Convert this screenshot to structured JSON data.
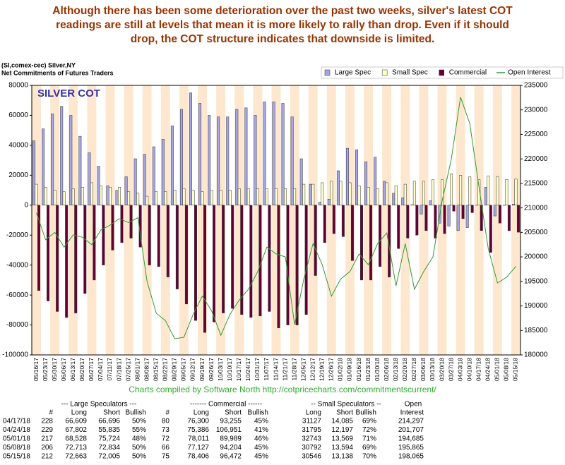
{
  "header": {
    "lines": [
      "Although there has been some deterioration over the past two weeks, silver's latest COT",
      "readings are still at levels that mean it is more likely to rally than drop. Even if it should",
      "drop, the COT structure indicates that downside is limited."
    ]
  },
  "chart_data": {
    "type": "bar",
    "title": "SILVER COT",
    "subtitle": [
      "(SI,comex-cec) Silver,NY",
      "Net Commitments of Futures Traders"
    ],
    "categories": [
      "05/16/17",
      "05/23/17",
      "05/30/17",
      "06/06/17",
      "06/13/17",
      "06/20/17",
      "06/27/17",
      "07/04/17",
      "07/11/17",
      "07/18/17",
      "07/25/17",
      "08/01/17",
      "08/08/17",
      "08/15/17",
      "08/22/17",
      "08/29/17",
      "09/05/17",
      "09/12/17",
      "09/19/17",
      "09/26/17",
      "10/03/17",
      "10/10/17",
      "10/17/17",
      "10/24/17",
      "10/31/17",
      "11/07/17",
      "11/14/17",
      "11/21/17",
      "11/28/17",
      "12/05/17",
      "12/12/17",
      "12/19/17",
      "12/26/17",
      "01/02/18",
      "01/09/18",
      "01/16/18",
      "01/23/18",
      "01/30/18",
      "02/06/18",
      "02/13/18",
      "02/20/18",
      "02/27/18",
      "03/06/18",
      "03/13/18",
      "03/20/18",
      "03/27/18",
      "04/03/18",
      "04/10/18",
      "04/17/18",
      "04/24/18",
      "05/01/18",
      "05/08/18",
      "05/15/18"
    ],
    "series": [
      {
        "name": "Large Spec",
        "type": "bar",
        "color": "#a6a6e6",
        "values": [
          43000,
          51000,
          61000,
          66000,
          60000,
          46000,
          35000,
          26000,
          13000,
          10000,
          19000,
          31000,
          34000,
          39000,
          44000,
          53000,
          64000,
          75000,
          68000,
          60000,
          59000,
          59000,
          64000,
          65000,
          60000,
          69000,
          69000,
          68000,
          59000,
          31000,
          14000,
          2000,
          4000,
          23000,
          38000,
          37000,
          29000,
          32000,
          16000,
          8000,
          5000,
          300,
          -6000,
          3000,
          -12000,
          -14000,
          -17000,
          -15000,
          -87,
          11967,
          -7196,
          -121,
          658
        ]
      },
      {
        "name": "Small Spec",
        "type": "bar",
        "color": "#ffffcc",
        "values": [
          14000,
          12000,
          10000,
          9000,
          11000,
          12000,
          15000,
          13000,
          12000,
          12000,
          9000,
          8000,
          6000,
          9000,
          9000,
          10000,
          11000,
          10000,
          9000,
          10000,
          10000,
          10000,
          11000,
          11000,
          11000,
          11000,
          11000,
          11000,
          11000,
          14000,
          14000,
          15000,
          16000,
          16000,
          15000,
          13000,
          12000,
          11000,
          15000,
          13000,
          14000,
          16000,
          16000,
          17000,
          17000,
          21000,
          20000,
          19000,
          17042,
          19598,
          19174,
          17198,
          17408
        ]
      },
      {
        "name": "Commercial",
        "type": "bar",
        "color": "#660033",
        "values": [
          -57000,
          -64000,
          -71000,
          -75000,
          -72000,
          -59000,
          -50000,
          -40000,
          -30000,
          -25000,
          -22000,
          -28000,
          -40000,
          -41000,
          -48000,
          -56000,
          -66000,
          -77000,
          -85000,
          -78000,
          -72000,
          -69000,
          -73000,
          -75000,
          -74000,
          -71000,
          -82000,
          -80000,
          -80000,
          -73000,
          -47000,
          -25000,
          -19000,
          -21000,
          -37000,
          -50000,
          -50000,
          -41000,
          -48000,
          -29000,
          -22000,
          -20000,
          -17000,
          -22000,
          -19000,
          -4000,
          -9000,
          -5000,
          -16955,
          -31565,
          -11978,
          -17077,
          -18066
        ]
      },
      {
        "name": "Open Interest",
        "type": "line",
        "axis": "y2",
        "color": "#339933",
        "values": [
          209000,
          203500,
          205000,
          202000,
          204500,
          204000,
          202500,
          205500,
          206500,
          207800,
          207000,
          208000,
          195000,
          188500,
          187000,
          183300,
          183600,
          188300,
          192000,
          189000,
          184000,
          188300,
          191200,
          193400,
          197000,
          202000,
          200600,
          200000,
          186200,
          195500,
          202700,
          198400,
          192000,
          195500,
          197000,
          200600,
          198400,
          202700,
          204900,
          194100,
          202700,
          193400,
          197000,
          200000,
          211400,
          220000,
          232600,
          227200,
          214297,
          201707,
          194685,
          195865,
          198065
        ]
      }
    ],
    "ylim": [
      -100000,
      80000
    ],
    "yticks": [
      -100000,
      -80000,
      -60000,
      -40000,
      -20000,
      0,
      20000,
      40000,
      60000,
      80000
    ],
    "y2lim": [
      180000,
      235000
    ],
    "y2ticks": [
      180000,
      185000,
      190000,
      195000,
      200000,
      205000,
      210000,
      215000,
      220000,
      225000,
      230000,
      235000
    ],
    "legend": "top",
    "stripes": [
      "#fde8cf",
      "#ffffff"
    ]
  },
  "footer": "Charts compiled by Software North  http://cotpricecharts.com/commitmentscurrent/",
  "table": {
    "header1": [
      "--- Large Speculators ---",
      "------- Commercial ------",
      "-- Small Speculators --",
      "Open"
    ],
    "header2": [
      "#",
      "Long",
      "Short",
      "Bullish",
      "#",
      "Long",
      "Short",
      "Bullish",
      "Long",
      "Short",
      "Bullish",
      "Interest"
    ],
    "rows": [
      [
        "04/17/18",
        "228",
        "66,609",
        "66,696",
        "50%",
        "80",
        "76,300",
        "93,255",
        "45%",
        "31127",
        "14,085",
        "69%",
        "214,297"
      ],
      [
        "04/24/18",
        "229",
        "67,802",
        "55,835",
        "55%",
        "73",
        "75,386",
        "106,951",
        "41%",
        "31795",
        "12,197",
        "72%",
        "201,707"
      ],
      [
        "05/01/18",
        "217",
        "68,528",
        "75,724",
        "48%",
        "72",
        "78,011",
        "89,989",
        "46%",
        "32743",
        "13,569",
        "71%",
        "194,685"
      ],
      [
        "05/08/18",
        "206",
        "72,713",
        "72,834",
        "50%",
        "66",
        "77,127",
        "94,204",
        "45%",
        "30792",
        "13,594",
        "69%",
        "195,865"
      ],
      [
        "05/15/18",
        "212",
        "72,663",
        "72,005",
        "50%",
        "75",
        "78,406",
        "96,472",
        "45%",
        "30546",
        "13,138",
        "70%",
        "198,065"
      ]
    ]
  }
}
